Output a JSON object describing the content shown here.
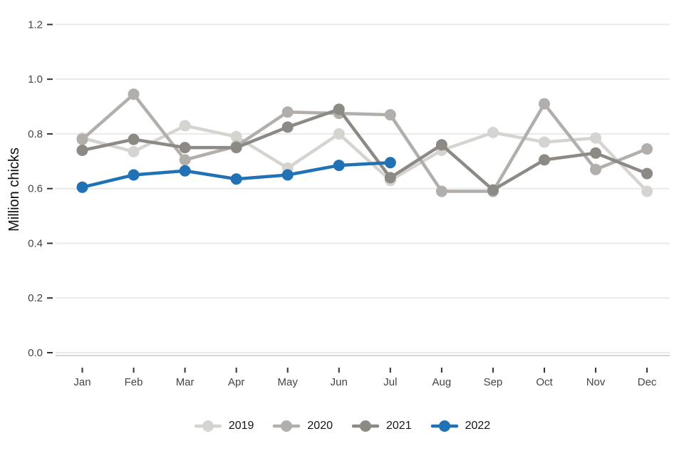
{
  "chart_data": {
    "type": "line",
    "title": "",
    "xlabel": "",
    "ylabel": "Million chicks",
    "categories": [
      "Jan",
      "Feb",
      "Mar",
      "Apr",
      "May",
      "Jun",
      "Jul",
      "Aug",
      "Sep",
      "Oct",
      "Nov",
      "Dec"
    ],
    "series": [
      {
        "name": "2019",
        "color": "#d6d4d1",
        "values": [
          0.785,
          0.735,
          0.83,
          0.79,
          0.675,
          0.8,
          0.63,
          0.74,
          0.805,
          0.77,
          0.785,
          0.59
        ]
      },
      {
        "name": "2020",
        "color": "#b1aeab",
        "values": [
          0.78,
          0.945,
          0.705,
          0.755,
          0.88,
          0.875,
          0.87,
          0.59,
          0.59,
          0.91,
          0.67,
          0.745
        ]
      },
      {
        "name": "2021",
        "color": "#8d8a85",
        "values": [
          0.74,
          0.78,
          0.75,
          0.75,
          0.825,
          0.89,
          0.64,
          0.76,
          0.595,
          0.705,
          0.73,
          0.655
        ]
      },
      {
        "name": "2022",
        "color": "#2171b5",
        "values": [
          0.605,
          0.65,
          0.665,
          0.635,
          0.65,
          0.685,
          0.695,
          null,
          null,
          null,
          null,
          null
        ]
      }
    ],
    "ylim": [
      0,
      1.2
    ],
    "yticks": [
      0.0,
      0.2,
      0.4,
      0.6,
      0.8,
      1.0,
      1.2
    ],
    "ytick_labels": [
      "0.0",
      "0.2",
      "0.4",
      "0.6",
      "0.8",
      "1.0",
      "1.2"
    ],
    "grid": "horizontal",
    "legend_position": "bottom",
    "legend_labels": [
      "2019",
      "2020",
      "2021",
      "2022"
    ],
    "colors": {
      "grid": "#e9e9e9",
      "axis_line": "#c8c7c5",
      "tick": "#333333",
      "tick_label": "#444444",
      "axis_title": "#0d0d0d",
      "accent_2022": "#2171b5"
    }
  }
}
